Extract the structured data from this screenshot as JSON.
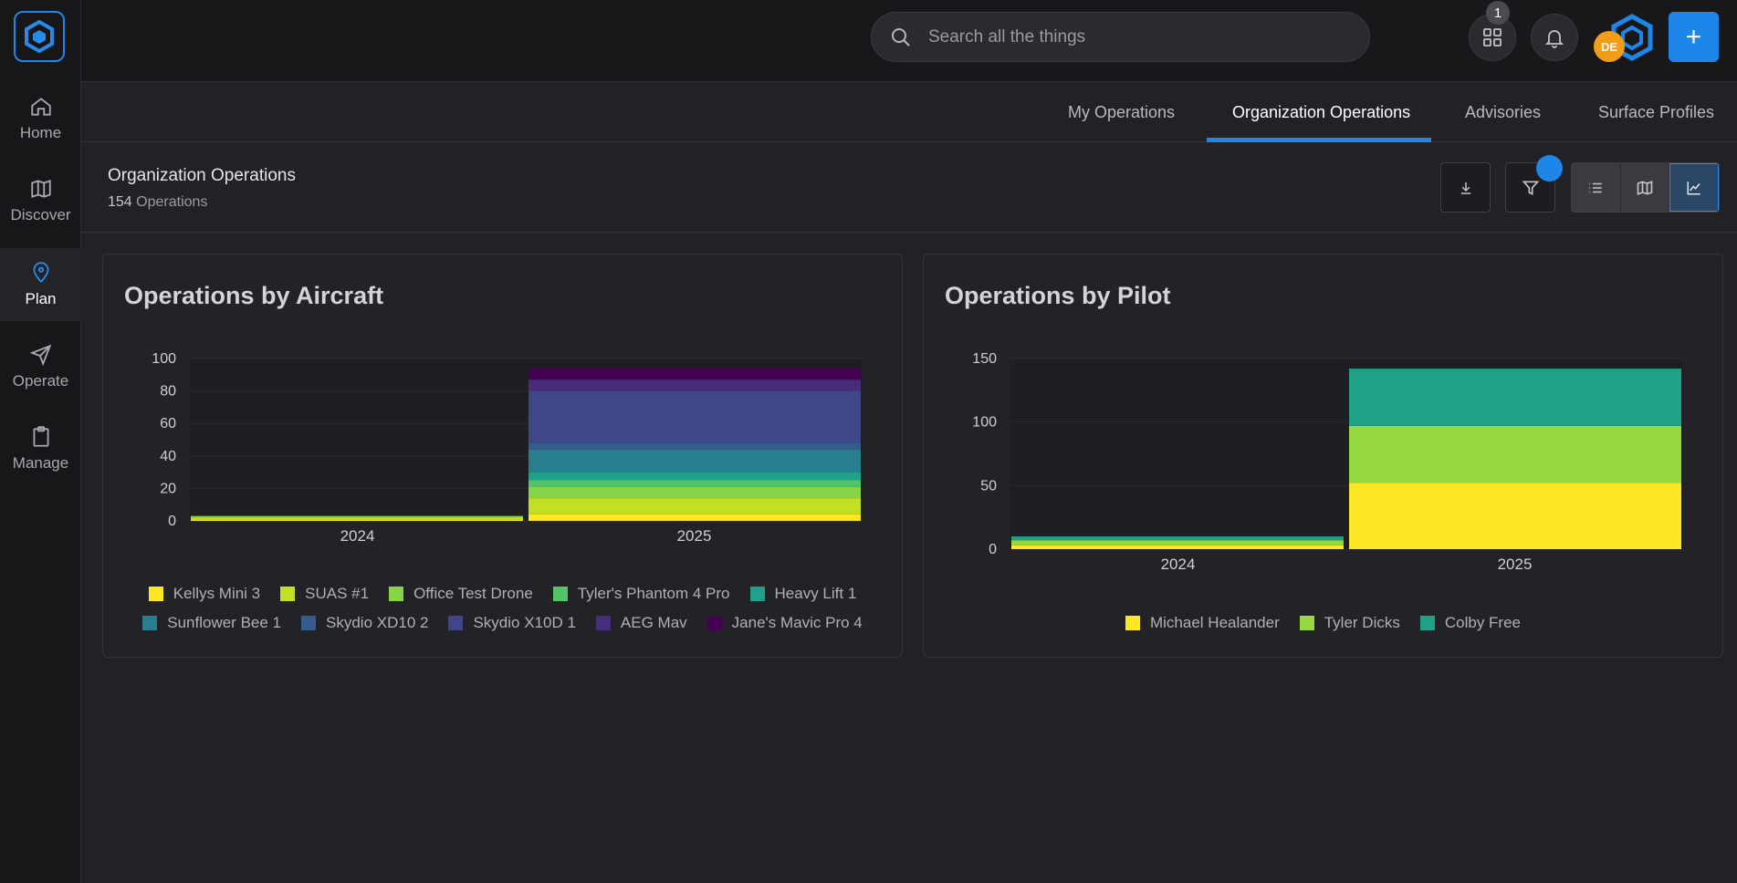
{
  "nav": {
    "items": [
      {
        "label": "Home",
        "icon": "home-icon"
      },
      {
        "label": "Discover",
        "icon": "map-icon"
      },
      {
        "label": "Plan",
        "icon": "map-pin-icon",
        "active": true
      },
      {
        "label": "Operate",
        "icon": "send-icon"
      },
      {
        "label": "Manage",
        "icon": "clipboard-icon"
      }
    ]
  },
  "header": {
    "search_placeholder": "Search all the things",
    "notification_count": "1",
    "avatar_initials": "DE",
    "accent_color": "#1e86e8"
  },
  "tabs": [
    {
      "label": "My Operations"
    },
    {
      "label": "Organization Operations",
      "active": true
    },
    {
      "label": "Advisories"
    },
    {
      "label": "Surface Profiles"
    }
  ],
  "page": {
    "title": "Organization Operations",
    "count": "154",
    "count_suffix": "Operations"
  },
  "chart_data": [
    {
      "type": "bar",
      "stacked": true,
      "title": "Operations by Aircraft",
      "categories": [
        "2024",
        "2025"
      ],
      "ylim": [
        0,
        100
      ],
      "yticks": [
        0,
        20,
        40,
        60,
        80,
        100
      ],
      "legend_position": "bottom",
      "series": [
        {
          "name": "Kellys Mini 3",
          "color": "#fde725",
          "values": [
            1,
            4
          ]
        },
        {
          "name": "SUAS #1",
          "color": "#c2df23",
          "values": [
            1,
            10
          ]
        },
        {
          "name": "Office Test Drone",
          "color": "#86d549",
          "values": [
            1,
            7
          ]
        },
        {
          "name": "Tyler's Phantom 4 Pro",
          "color": "#52c569",
          "values": [
            0,
            4
          ]
        },
        {
          "name": "Heavy Lift 1",
          "color": "#1fa187",
          "values": [
            0,
            5
          ]
        },
        {
          "name": "Sunflower Bee 1",
          "color": "#277f8e",
          "values": [
            0,
            14
          ]
        },
        {
          "name": "Skydio XD10 2",
          "color": "#365c8d",
          "values": [
            0,
            4
          ]
        },
        {
          "name": "Skydio X10D 1",
          "color": "#3f4788",
          "values": [
            0,
            32
          ]
        },
        {
          "name": "AEG Mav",
          "color": "#472d7b",
          "values": [
            0,
            7
          ]
        },
        {
          "name": "Jane's Mavic Pro 4",
          "color": "#440154",
          "values": [
            0,
            7
          ]
        }
      ]
    },
    {
      "type": "bar",
      "stacked": true,
      "title": "Operations by Pilot",
      "categories": [
        "2024",
        "2025"
      ],
      "ylim": [
        0,
        150
      ],
      "yticks": [
        0,
        50,
        100,
        150
      ],
      "legend_position": "bottom",
      "series": [
        {
          "name": "Michael Healander",
          "color": "#fde725",
          "values": [
            3,
            52
          ]
        },
        {
          "name": "Tyler Dicks",
          "color": "#95d840",
          "values": [
            4,
            45
          ]
        },
        {
          "name": "Colby Free",
          "color": "#1fa187",
          "values": [
            3,
            45
          ]
        }
      ]
    }
  ]
}
